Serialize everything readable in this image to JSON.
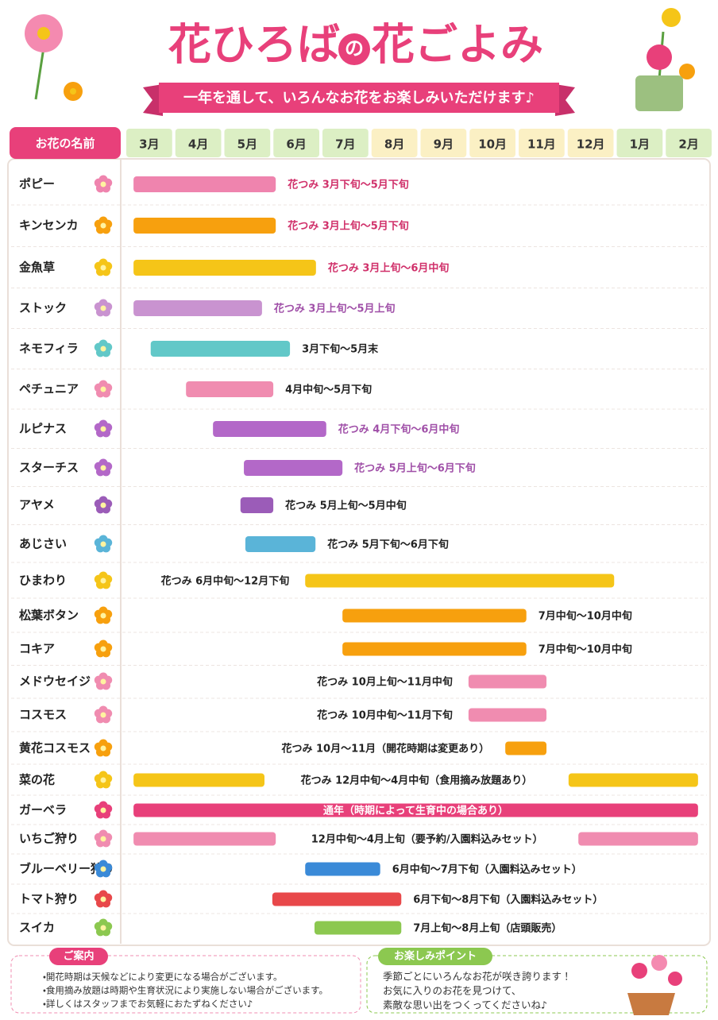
{
  "header": {
    "title": [
      "花ひろば",
      "の",
      "花ごよみ"
    ],
    "subtitle": "一年を通して、いろんなお花をお楽しみいただけます♪"
  },
  "table": {
    "name_header": "お花の名前",
    "months": [
      "3月",
      "4月",
      "5月",
      "6月",
      "7月",
      "8月",
      "9月",
      "10月",
      "11月",
      "12月",
      "1月",
      "2月"
    ],
    "rows": [
      {
        "name": "ポピー",
        "color": "#ef84ae",
        "spans": [
          [
            0.18,
            3.08
          ]
        ],
        "label": "花つみ 3月下旬～5月下旬",
        "label_color": "#d0306a",
        "label_pos": "right"
      },
      {
        "name": "キンセンカ",
        "color": "#f7a00e",
        "spans": [
          [
            0.18,
            3.08
          ]
        ],
        "label": "花つみ 3月上旬～5月下旬",
        "label_color": "#d0306a",
        "label_pos": "right"
      },
      {
        "name": "金魚草",
        "color": "#f5c518",
        "spans": [
          [
            0.18,
            3.9
          ]
        ],
        "label": "花つみ 3月上旬～6月中旬",
        "label_color": "#d0306a",
        "label_pos": "right"
      },
      {
        "name": "ストック",
        "color": "#c993d0",
        "spans": [
          [
            0.18,
            2.8
          ]
        ],
        "label": "花つみ 3月上旬～5月上旬",
        "label_color": "#a050a8",
        "label_pos": "right"
      },
      {
        "name": "ネモフィラ",
        "color": "#62c8c8",
        "spans": [
          [
            0.53,
            3.37
          ]
        ],
        "label": "3月下旬～5月末",
        "label_color": "#222",
        "label_pos": "right"
      },
      {
        "name": "ペチュニア",
        "color": "#f08cb0",
        "spans": [
          [
            1.25,
            3.03
          ]
        ],
        "label": "4月中旬～5月下旬",
        "label_color": "#222",
        "label_pos": "right"
      },
      {
        "name": "ルピナス",
        "color": "#b368c8",
        "spans": [
          [
            1.8,
            4.11
          ]
        ],
        "label": "花つみ 4月下旬～6月中旬",
        "label_color": "#a050a8",
        "label_pos": "right"
      },
      {
        "name": "スターチス",
        "color": "#b368c8",
        "spans": [
          [
            2.43,
            4.44
          ]
        ],
        "label": "花つみ 5月上旬～6月下旬",
        "label_color": "#a050a8",
        "label_pos": "right"
      },
      {
        "name": "アヤメ",
        "color": "#9b5cb8",
        "spans": [
          [
            2.36,
            3.03
          ]
        ],
        "label": "花つみ 5月上旬～5月中旬",
        "label_color": "#222",
        "label_pos": "right"
      },
      {
        "name": "あじさい",
        "color": "#5ab4d8",
        "spans": [
          [
            2.46,
            3.89
          ]
        ],
        "label": "花つみ 5月下旬～6月下旬",
        "label_color": "#222",
        "label_pos": "right"
      },
      {
        "name": "ひまわり",
        "color": "#f5c518",
        "spans": [
          [
            3.68,
            9.98
          ]
        ],
        "label": "花つみ 6月中旬～12月下旬",
        "label_color": "#222",
        "label_pos": "left"
      },
      {
        "name": "松葉ボタン",
        "color": "#f7a00e",
        "spans": [
          [
            4.44,
            8.19
          ]
        ],
        "label": "7月中旬～10月中旬",
        "label_color": "#222",
        "label_pos": "right"
      },
      {
        "name": "コキア",
        "color": "#f7a00e",
        "spans": [
          [
            4.44,
            8.19
          ]
        ],
        "label": "7月中旬～10月中旬",
        "label_color": "#222",
        "label_pos": "right"
      },
      {
        "name": "メドウセイジ",
        "color": "#f08cb0",
        "spans": [
          [
            7.01,
            8.6
          ]
        ],
        "label": "花つみ 10月上旬～11月中旬",
        "label_color": "#222",
        "label_pos": "left"
      },
      {
        "name": "コスモス",
        "color": "#f08cb0",
        "spans": [
          [
            7.01,
            8.6
          ]
        ],
        "label": "花つみ 10月中旬～11月下旬",
        "label_color": "#222",
        "label_pos": "left"
      },
      {
        "name": "黄花コスモス",
        "color": "#f7a00e",
        "spans": [
          [
            7.76,
            8.6
          ]
        ],
        "label": "花つみ 10月～11月（開花時期は変更あり）",
        "label_color": "#222",
        "label_pos": "left"
      },
      {
        "name": "菜の花",
        "color": "#f5c518",
        "spans": [
          [
            0.18,
            2.85
          ],
          [
            9.05,
            11.69
          ]
        ],
        "label": "花つみ 12月中旬～4月中旬（食用摘み放題あり）",
        "label_color": "#222",
        "label_pos": "center"
      },
      {
        "name": "ガーベラ",
        "color": "#e8407a",
        "spans": [
          [
            0.18,
            11.69
          ]
        ],
        "label": "通年（時期によって生育中の場合あり）",
        "label_color": "#fff",
        "label_pos": "inside"
      },
      {
        "name": "いちご狩り",
        "color": "#f08cb0",
        "spans": [
          [
            0.18,
            3.08
          ],
          [
            9.25,
            11.69
          ]
        ],
        "label": "12月中旬～4月上旬（要予約/入園料込みセット）",
        "label_color": "#222",
        "label_pos": "center"
      },
      {
        "name": "ブルーベリー狩り",
        "color": "#3a8ad8",
        "spans": [
          [
            3.68,
            5.21
          ]
        ],
        "label": "6月中旬～7月下旬（入園料込みセット）",
        "label_color": "#222",
        "label_pos": "right"
      },
      {
        "name": "トマト狩り",
        "color": "#e8484a",
        "spans": [
          [
            3.01,
            5.64
          ]
        ],
        "label": "6月下旬～8月下旬（入園料込みセット）",
        "label_color": "#222",
        "label_pos": "right"
      },
      {
        "name": "スイカ",
        "color": "#8cc850",
        "spans": [
          [
            3.87,
            5.64
          ]
        ],
        "label": "7月上旬～8月上旬（店頭販売）",
        "label_color": "#222",
        "label_pos": "right"
      }
    ]
  },
  "footer": {
    "info": {
      "title": "ご案内",
      "items": [
        "・開花時期は天候などにより変更になる場合がございます。",
        "・食用摘み放題は時期や生育状況により実施しない場合がございます。",
        "・詳しくはスタッフまでお気軽におたずねください♪"
      ]
    },
    "points": {
      "title": "お楽しみポイント",
      "lines": [
        "季節ごとにいろんなお花が咲き誇ります！",
        "お気に入りのお花を見つけて、",
        "素敵な思い出をつくってくださいね♪"
      ]
    }
  }
}
